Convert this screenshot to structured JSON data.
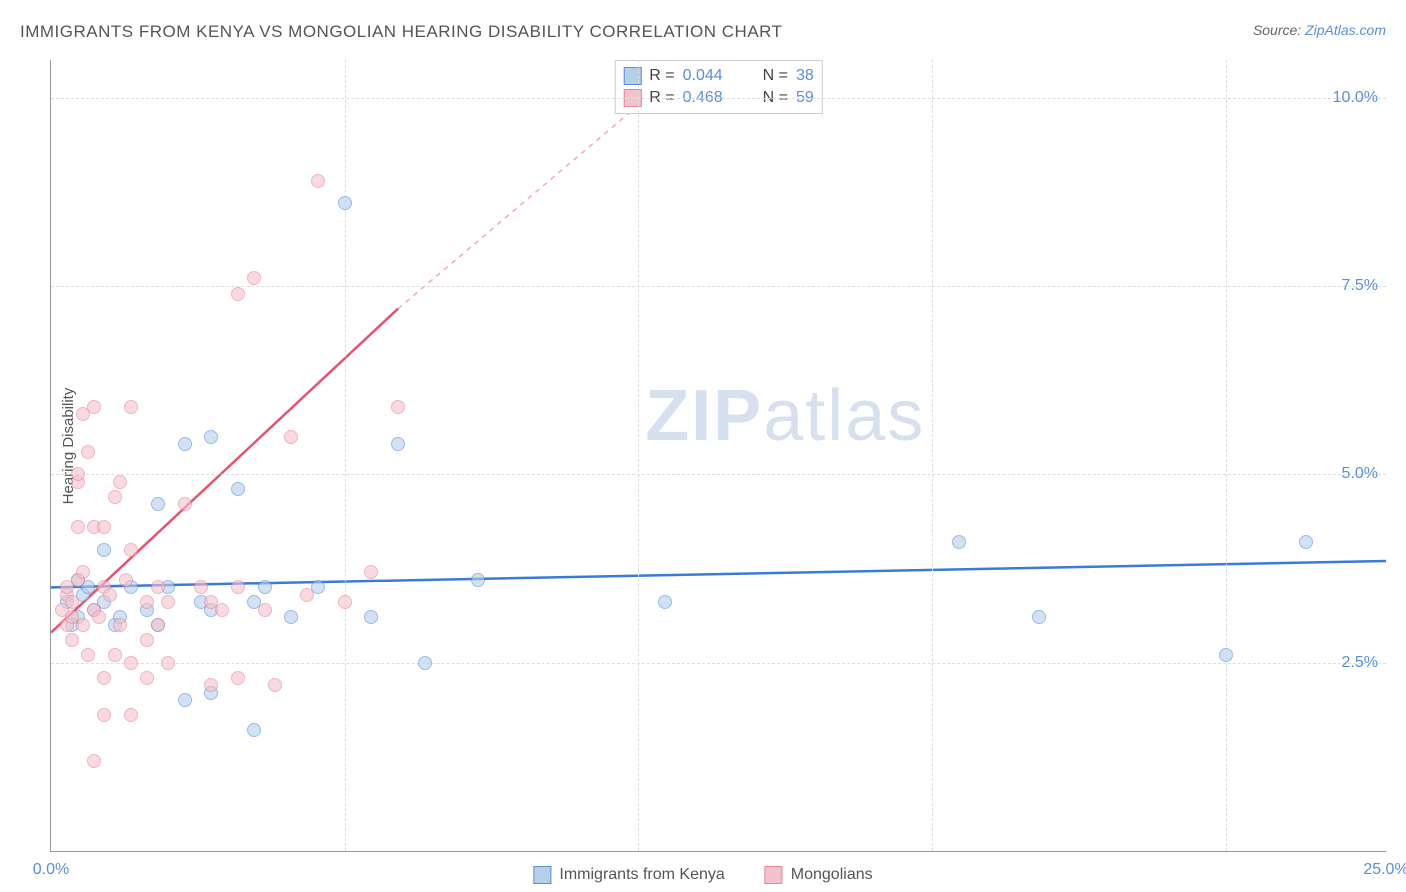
{
  "title": "IMMIGRANTS FROM KENYA VS MONGOLIAN HEARING DISABILITY CORRELATION CHART",
  "source_prefix": "Source: ",
  "source_link": "ZipAtlas.com",
  "ylabel": "Hearing Disability",
  "watermark_zip": "ZIP",
  "watermark_atlas": "atlas",
  "chart": {
    "type": "scatter",
    "xlim": [
      0,
      25
    ],
    "ylim": [
      0,
      10.5
    ],
    "yticks": [
      2.5,
      5.0,
      7.5,
      10.0
    ],
    "ytick_labels": [
      "2.5%",
      "5.0%",
      "7.5%",
      "10.0%"
    ],
    "xticks": [
      0,
      25
    ],
    "xtick_labels": [
      "0.0%",
      "25.0%"
    ],
    "xgrid_positions": [
      5.5,
      11,
      16.5,
      22
    ],
    "background_color": "#ffffff",
    "grid_color": "#dddddd",
    "axis_color": "#999999",
    "point_radius": 7,
    "series": [
      {
        "key": "kenya",
        "label": "Immigrants from Kenya",
        "R": "0.044",
        "N": "38",
        "fill": "#b5cfeb",
        "stroke": "#5a8fd6",
        "fill_opacity": 0.6,
        "line_color": "#3a7bd5",
        "line_width": 2.5,
        "trend": {
          "x1": 0,
          "y1": 3.5,
          "x2": 25,
          "y2": 3.85
        },
        "points": [
          [
            0.3,
            3.3
          ],
          [
            0.5,
            3.1
          ],
          [
            0.6,
            3.4
          ],
          [
            0.8,
            3.2
          ],
          [
            1.0,
            3.3
          ],
          [
            1.2,
            3.0
          ],
          [
            1.5,
            3.5
          ],
          [
            1.8,
            3.2
          ],
          [
            2.0,
            4.6
          ],
          [
            2.0,
            3.0
          ],
          [
            2.2,
            3.5
          ],
          [
            2.5,
            5.4
          ],
          [
            2.5,
            2.0
          ],
          [
            2.8,
            3.3
          ],
          [
            3.0,
            5.5
          ],
          [
            3.0,
            2.1
          ],
          [
            3.0,
            3.2
          ],
          [
            3.5,
            4.8
          ],
          [
            3.8,
            3.3
          ],
          [
            3.8,
            1.6
          ],
          [
            4.0,
            3.5
          ],
          [
            4.5,
            3.1
          ],
          [
            5.0,
            3.5
          ],
          [
            5.5,
            8.6
          ],
          [
            6.0,
            3.1
          ],
          [
            6.5,
            5.4
          ],
          [
            7.0,
            2.5
          ],
          [
            8.0,
            3.6
          ],
          [
            11.5,
            3.3
          ],
          [
            17.0,
            4.1
          ],
          [
            18.5,
            3.1
          ],
          [
            22.0,
            2.6
          ],
          [
            23.5,
            4.1
          ],
          [
            1.0,
            4.0
          ],
          [
            0.4,
            3.0
          ],
          [
            0.7,
            3.5
          ],
          [
            1.3,
            3.1
          ],
          [
            0.5,
            3.6
          ]
        ]
      },
      {
        "key": "mongolians",
        "label": "Mongolians",
        "R": "0.468",
        "N": "59",
        "fill": "#f4c2cc",
        "stroke": "#e6859a",
        "fill_opacity": 0.6,
        "line_color": "#e6536f",
        "line_width": 2.5,
        "trend": {
          "x1": 0,
          "y1": 2.9,
          "x2": 6.5,
          "y2": 7.2
        },
        "trend_dash": {
          "x1": 6.5,
          "y1": 7.2,
          "x2": 12,
          "y2": 10.5
        },
        "points": [
          [
            0.2,
            3.2
          ],
          [
            0.3,
            3.0
          ],
          [
            0.3,
            3.4
          ],
          [
            0.4,
            2.8
          ],
          [
            0.4,
            3.3
          ],
          [
            0.5,
            3.6
          ],
          [
            0.5,
            4.3
          ],
          [
            0.5,
            4.9
          ],
          [
            0.5,
            5.0
          ],
          [
            0.6,
            3.0
          ],
          [
            0.6,
            5.8
          ],
          [
            0.7,
            2.6
          ],
          [
            0.7,
            5.3
          ],
          [
            0.8,
            3.2
          ],
          [
            0.8,
            4.3
          ],
          [
            0.8,
            5.9
          ],
          [
            0.8,
            1.2
          ],
          [
            1.0,
            1.8
          ],
          [
            1.0,
            2.3
          ],
          [
            1.0,
            3.5
          ],
          [
            1.0,
            4.3
          ],
          [
            1.2,
            2.6
          ],
          [
            1.2,
            4.7
          ],
          [
            1.3,
            3.0
          ],
          [
            1.3,
            4.9
          ],
          [
            1.5,
            1.8
          ],
          [
            1.5,
            2.5
          ],
          [
            1.5,
            4.0
          ],
          [
            1.5,
            5.9
          ],
          [
            1.8,
            2.3
          ],
          [
            1.8,
            2.8
          ],
          [
            1.8,
            3.3
          ],
          [
            2.0,
            3.0
          ],
          [
            2.0,
            3.5
          ],
          [
            2.2,
            2.5
          ],
          [
            2.2,
            3.3
          ],
          [
            2.5,
            4.6
          ],
          [
            2.8,
            3.5
          ],
          [
            3.0,
            3.3
          ],
          [
            3.0,
            2.2
          ],
          [
            3.2,
            3.2
          ],
          [
            3.5,
            3.5
          ],
          [
            3.5,
            2.3
          ],
          [
            3.5,
            7.4
          ],
          [
            3.8,
            7.6
          ],
          [
            4.0,
            3.2
          ],
          [
            4.2,
            2.2
          ],
          [
            4.5,
            5.5
          ],
          [
            4.8,
            3.4
          ],
          [
            5.0,
            8.9
          ],
          [
            5.5,
            3.3
          ],
          [
            6.0,
            3.7
          ],
          [
            6.5,
            5.9
          ],
          [
            0.3,
            3.5
          ],
          [
            0.4,
            3.1
          ],
          [
            0.6,
            3.7
          ],
          [
            0.9,
            3.1
          ],
          [
            1.1,
            3.4
          ],
          [
            1.4,
            3.6
          ]
        ]
      }
    ],
    "legend_top": {
      "r_label": "R =",
      "n_label": "N ="
    }
  }
}
